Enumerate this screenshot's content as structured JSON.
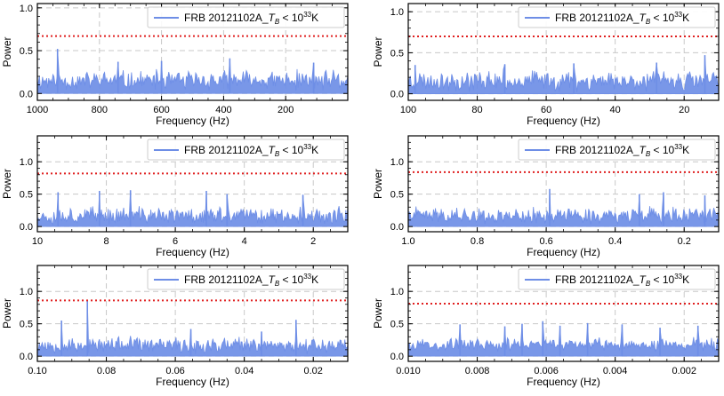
{
  "colors": {
    "series": "#6e8ee6",
    "threshold": "#e02020",
    "grid": "#c8c8c8",
    "frame": "#000000",
    "legend_border": "#cccccc"
  },
  "chart_data": [
    {
      "type": "line",
      "title": "",
      "legend": {
        "main": "FRB 20121102A_",
        "sym": "T",
        "sub": "B",
        "rel": " < 10",
        "sup": "33",
        "unit": "K"
      },
      "xlabel": "Frequency (Hz)",
      "ylabel": "Power",
      "xlim": [
        1000,
        0.0
      ],
      "ylim": [
        -0.08,
        1.05
      ],
      "xticks": [
        1000,
        800,
        600,
        400,
        200
      ],
      "xticklabels": [
        "1000",
        "800",
        "600",
        "400",
        "200"
      ],
      "yticks": [
        0.0,
        0.5,
        1.0
      ],
      "yticklabels": [
        "0.0",
        "0.5",
        "1.0"
      ],
      "threshold": 0.67,
      "noise": {
        "baseline": 0.15,
        "amplitude": 0.14,
        "points": 300,
        "seed": 11
      },
      "peaks": [
        {
          "x": 935,
          "y": 0.52
        },
        {
          "x": 740,
          "y": 0.37
        },
        {
          "x": 600,
          "y": 0.38
        },
        {
          "x": 380,
          "y": 0.41
        },
        {
          "x": 110,
          "y": 0.36
        }
      ]
    },
    {
      "type": "line",
      "title": "",
      "legend": {
        "main": "FRB 20121102A_",
        "sym": "T",
        "sub": "B",
        "rel": " < 10",
        "sup": "33",
        "unit": "K"
      },
      "xlabel": "Frequency (Hz)",
      "ylabel": "Power",
      "xlim": [
        100,
        10
      ],
      "ylim": [
        -0.08,
        1.1
      ],
      "xticks": [
        100,
        80,
        60,
        40,
        20
      ],
      "xticklabels": [
        "100",
        "80",
        "60",
        "40",
        "20"
      ],
      "yticks": [
        0.0,
        0.5,
        1.0
      ],
      "yticklabels": [
        "0.0",
        "0.5",
        "1.0"
      ],
      "threshold": 0.7,
      "noise": {
        "baseline": 0.16,
        "amplitude": 0.15,
        "points": 300,
        "seed": 23
      },
      "peaks": [
        {
          "x": 98,
          "y": 0.35
        },
        {
          "x": 72,
          "y": 0.36
        },
        {
          "x": 52,
          "y": 0.37
        },
        {
          "x": 28,
          "y": 0.38
        },
        {
          "x": 14,
          "y": 0.47
        }
      ]
    },
    {
      "type": "line",
      "title": "",
      "legend": {
        "main": "FRB 20121102A_",
        "sym": "T",
        "sub": "B",
        "rel": " < 10",
        "sup": "33",
        "unit": "K"
      },
      "xlabel": "Frequency (Hz)",
      "ylabel": "Power",
      "xlim": [
        10,
        1
      ],
      "ylim": [
        -0.08,
        1.4
      ],
      "xticks": [
        10,
        8,
        6,
        4,
        2
      ],
      "xticklabels": [
        "10",
        "8",
        "6",
        "4",
        "2"
      ],
      "yticks": [
        0.0,
        0.5,
        1.0
      ],
      "yticklabels": [
        "0.0",
        "0.5",
        "1.0"
      ],
      "threshold": 0.82,
      "noise": {
        "baseline": 0.17,
        "amplitude": 0.16,
        "points": 320,
        "seed": 37
      },
      "peaks": [
        {
          "x": 9.4,
          "y": 0.53
        },
        {
          "x": 8.2,
          "y": 0.55
        },
        {
          "x": 7.3,
          "y": 0.56
        },
        {
          "x": 5.1,
          "y": 0.55
        },
        {
          "x": 4.5,
          "y": 0.5
        },
        {
          "x": 2.3,
          "y": 0.49
        }
      ]
    },
    {
      "type": "line",
      "title": "",
      "legend": {
        "main": "FRB 20121102A_",
        "sym": "T",
        "sub": "B",
        "rel": " < 10",
        "sup": "33",
        "unit": "K"
      },
      "xlabel": "Frequency (Hz)",
      "ylabel": "Power",
      "xlim": [
        1.0,
        0.1
      ],
      "ylim": [
        -0.08,
        1.4
      ],
      "xticks": [
        1.0,
        0.8,
        0.6,
        0.4,
        0.2
      ],
      "xticklabels": [
        "1.0",
        "0.8",
        "0.6",
        "0.4",
        "0.2"
      ],
      "yticks": [
        0.0,
        0.5,
        1.0
      ],
      "yticklabels": [
        "0.0",
        "0.5",
        "1.0"
      ],
      "threshold": 0.84,
      "noise": {
        "baseline": 0.17,
        "amplitude": 0.15,
        "points": 320,
        "seed": 41
      },
      "peaks": [
        {
          "x": 0.59,
          "y": 0.58
        },
        {
          "x": 0.33,
          "y": 0.5
        },
        {
          "x": 0.26,
          "y": 0.53
        },
        {
          "x": 0.14,
          "y": 0.48
        }
      ]
    },
    {
      "type": "line",
      "title": "",
      "legend": {
        "main": "FRB 20121102A_",
        "sym": "T",
        "sub": "B",
        "rel": " < 10",
        "sup": "33",
        "unit": "K"
      },
      "xlabel": "Frequency (Hz)",
      "ylabel": "Power",
      "xlim": [
        0.1,
        0.01
      ],
      "ylim": [
        -0.08,
        1.4
      ],
      "xticks": [
        0.1,
        0.08,
        0.06,
        0.04,
        0.02
      ],
      "xticklabels": [
        "0.10",
        "0.08",
        "0.06",
        "0.04",
        "0.02"
      ],
      "yticks": [
        0.0,
        0.5,
        1.0
      ],
      "yticklabels": [
        "0.0",
        "0.5",
        "1.0"
      ],
      "threshold": 0.86,
      "noise": {
        "baseline": 0.17,
        "amplitude": 0.15,
        "points": 320,
        "seed": 53
      },
      "peaks": [
        {
          "x": 0.093,
          "y": 0.55
        },
        {
          "x": 0.0855,
          "y": 0.87
        },
        {
          "x": 0.0555,
          "y": 0.42
        },
        {
          "x": 0.035,
          "y": 0.38
        },
        {
          "x": 0.025,
          "y": 0.56
        }
      ]
    },
    {
      "type": "line",
      "title": "",
      "legend": {
        "main": "FRB 20121102A_",
        "sym": "T",
        "sub": "B",
        "rel": " < 10",
        "sup": "33",
        "unit": "K"
      },
      "xlabel": "Frequency (Hz)",
      "ylabel": "Power",
      "xlim": [
        0.01,
        0.001
      ],
      "ylim": [
        -0.08,
        1.4
      ],
      "xticks": [
        0.01,
        0.008,
        0.006,
        0.004,
        0.002
      ],
      "xticklabels": [
        "0.010",
        "0.008",
        "0.006",
        "0.004",
        "0.002"
      ],
      "yticks": [
        0.0,
        0.5,
        1.0
      ],
      "yticklabels": [
        "0.0",
        "0.5",
        "1.0"
      ],
      "threshold": 0.81,
      "noise": {
        "baseline": 0.18,
        "amplitude": 0.12,
        "points": 260,
        "seed": 67
      },
      "peaks": [
        {
          "x": 0.0085,
          "y": 0.49
        },
        {
          "x": 0.0072,
          "y": 0.46
        },
        {
          "x": 0.0067,
          "y": 0.5
        },
        {
          "x": 0.0061,
          "y": 0.54
        },
        {
          "x": 0.0056,
          "y": 0.47
        },
        {
          "x": 0.0048,
          "y": 0.51
        },
        {
          "x": 0.0038,
          "y": 0.49
        },
        {
          "x": 0.0027,
          "y": 0.44
        },
        {
          "x": 0.0016,
          "y": 0.47
        }
      ]
    }
  ]
}
